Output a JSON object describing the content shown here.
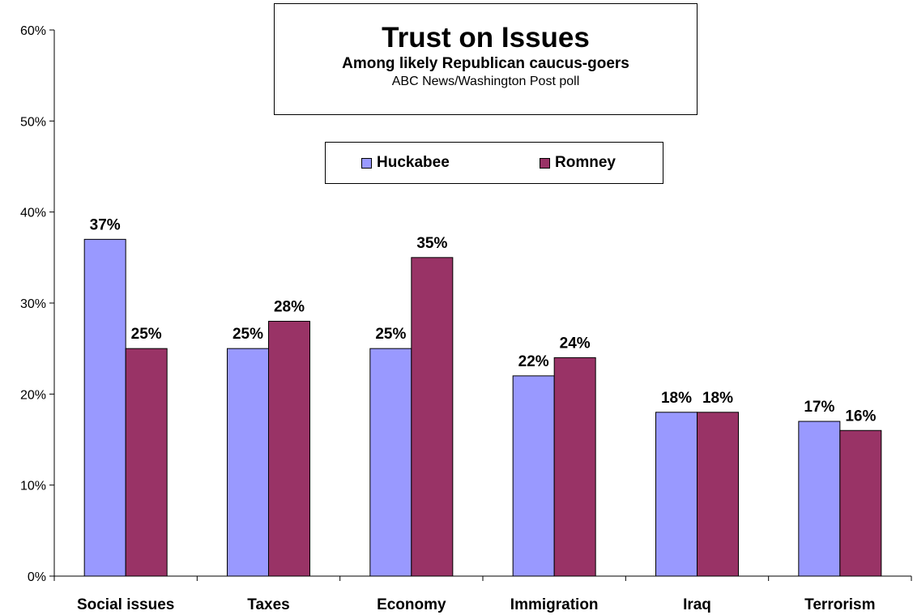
{
  "chart_data": {
    "type": "bar",
    "title": "Trust on Issues",
    "subtitle": "Among likely Republican caucus-goers",
    "source": "ABC News/Washington Post poll",
    "categories": [
      "Social issues",
      "Taxes",
      "Economy",
      "Immigration",
      "Iraq",
      "Terrorism"
    ],
    "series": [
      {
        "name": "Huckabee",
        "color": "#9999ff",
        "values": [
          37,
          25,
          25,
          22,
          18,
          17
        ],
        "labels": [
          "37%",
          "25%",
          "25%",
          "22%",
          "18%",
          "17%"
        ]
      },
      {
        "name": "Romney",
        "color": "#993366",
        "values": [
          25,
          28,
          35,
          24,
          18,
          16
        ],
        "labels": [
          "25%",
          "28%",
          "35%",
          "24%",
          "18%",
          "16%"
        ]
      }
    ],
    "ylim": [
      0,
      60
    ],
    "y_ticks": [
      0,
      10,
      20,
      30,
      40,
      50,
      60
    ],
    "y_tick_labels": [
      "0%",
      "10%",
      "20%",
      "30%",
      "40%",
      "50%",
      "60%"
    ],
    "xlabel": "",
    "ylabel": "",
    "grid": false,
    "legend_position": "top-center"
  }
}
